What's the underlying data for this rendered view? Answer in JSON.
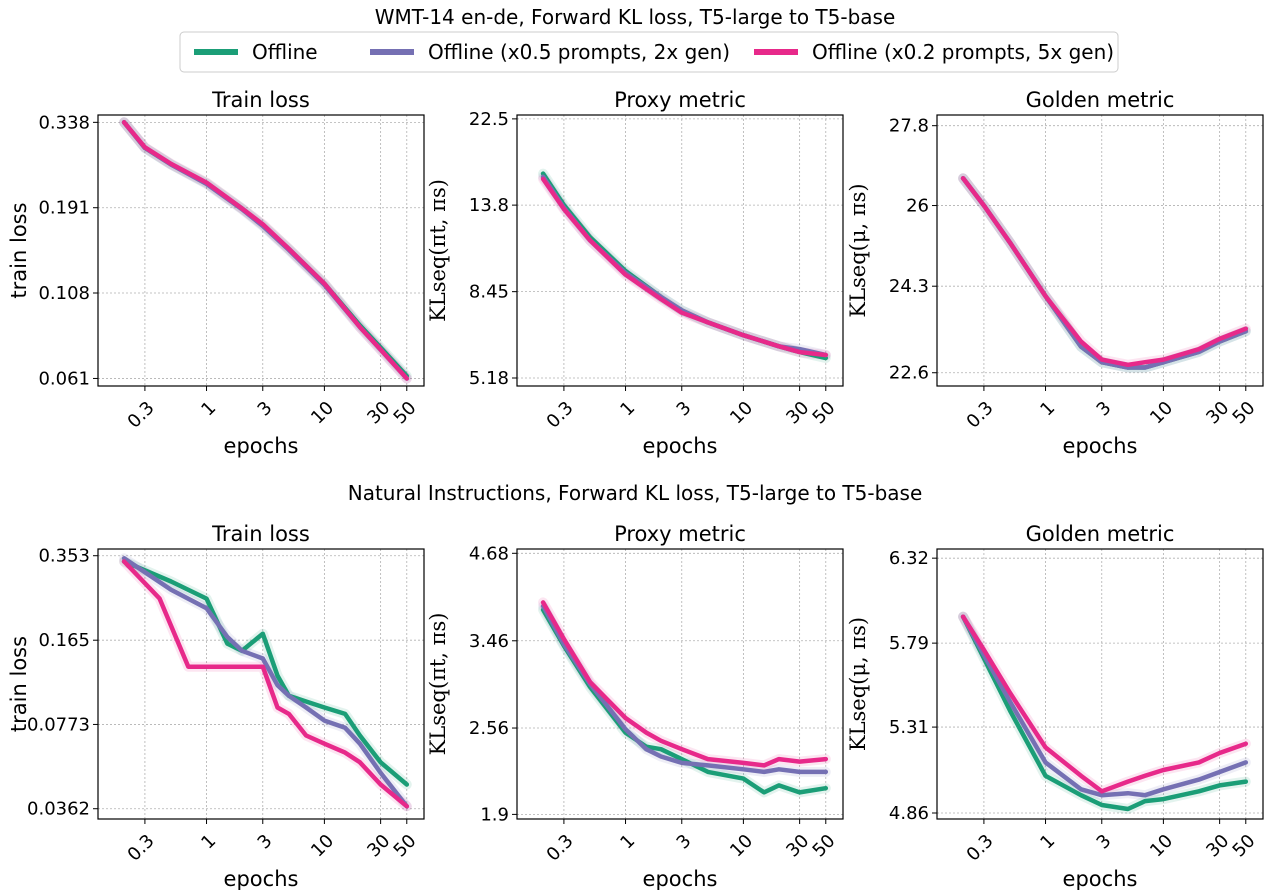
{
  "figure": {
    "row_titles": [
      "WMT-14 en-de, Forward KL loss, T5-large to T5-base",
      "Natural Instructions, Forward KL loss, T5-large to T5-base"
    ],
    "legend": [
      {
        "label": "Offline",
        "color": "#1b9e77"
      },
      {
        "label": "Offline (x0.5 prompts, 2x gen)",
        "color": "#7570b3"
      },
      {
        "label": "Offline (x0.2 prompts, 5x gen)",
        "color": "#e7298a"
      }
    ]
  },
  "chart_data": [
    {
      "type": "line",
      "title": "Train loss",
      "xlabel": "epochs",
      "ylabel": "train loss",
      "xscale": "log",
      "yscale": "log",
      "xticks": [
        "0.3",
        "1",
        "3",
        "10",
        "30",
        "50"
      ],
      "yticks": [
        "0.061",
        "0.108",
        "0.191",
        "0.338"
      ],
      "ylim": [
        0.058,
        0.355
      ],
      "grid": true,
      "series": [
        {
          "name": "Offline",
          "color": "#1b9e77",
          "x": [
            0.2,
            0.3,
            0.5,
            1,
            2,
            3,
            5,
            10,
            20,
            30,
            50
          ],
          "y": [
            0.338,
            0.285,
            0.255,
            0.225,
            0.19,
            0.17,
            0.145,
            0.115,
            0.087,
            0.075,
            0.062
          ]
        },
        {
          "name": "Offline (x0.5 prompts, 2x gen)",
          "color": "#7570b3",
          "x": [
            0.2,
            0.3,
            0.5,
            1,
            2,
            3,
            5,
            10,
            20,
            30,
            50
          ],
          "y": [
            0.338,
            0.285,
            0.255,
            0.224,
            0.189,
            0.169,
            0.144,
            0.114,
            0.086,
            0.074,
            0.061
          ]
        },
        {
          "name": "Offline (x0.2 prompts, 5x gen)",
          "color": "#e7298a",
          "x": [
            0.2,
            0.3,
            0.5,
            1,
            2,
            3,
            5,
            10,
            20,
            30,
            50
          ],
          "y": [
            0.338,
            0.286,
            0.256,
            0.226,
            0.19,
            0.171,
            0.145,
            0.115,
            0.086,
            0.074,
            0.061
          ]
        }
      ]
    },
    {
      "type": "line",
      "title": "Proxy metric",
      "xlabel": "epochs",
      "ylabel": "KLseq(πt, πs)",
      "xscale": "log",
      "yscale": "log",
      "xticks": [
        "0.3",
        "1",
        "3",
        "10",
        "30",
        "50"
      ],
      "yticks": [
        "5.18",
        "8.45",
        "13.8",
        "22.5"
      ],
      "ylim": [
        4.95,
        23.0
      ],
      "grid": true,
      "series": [
        {
          "name": "Offline",
          "color": "#1b9e77",
          "x": [
            0.2,
            0.3,
            0.5,
            1,
            2,
            3,
            5,
            10,
            20,
            30,
            50
          ],
          "y": [
            16.5,
            13.8,
            11.5,
            9.5,
            8.2,
            7.6,
            7.1,
            6.6,
            6.2,
            6.0,
            5.8
          ]
        },
        {
          "name": "Offline (x0.5 prompts, 2x gen)",
          "color": "#7570b3",
          "x": [
            0.2,
            0.3,
            0.5,
            1,
            2,
            3,
            5,
            10,
            20,
            30,
            50
          ],
          "y": [
            16.2,
            13.6,
            11.3,
            9.4,
            8.2,
            7.6,
            7.1,
            6.6,
            6.2,
            6.1,
            5.9
          ]
        },
        {
          "name": "Offline (x0.2 prompts, 5x gen)",
          "color": "#e7298a",
          "x": [
            0.2,
            0.3,
            0.5,
            1,
            2,
            3,
            5,
            10,
            20,
            30,
            50
          ],
          "y": [
            16.0,
            13.5,
            11.3,
            9.3,
            8.1,
            7.5,
            7.1,
            6.6,
            6.2,
            6.0,
            5.9
          ]
        }
      ]
    },
    {
      "type": "line",
      "title": "Golden metric",
      "xlabel": "epochs",
      "ylabel": "KLseq(μ, πs)",
      "xscale": "log",
      "yscale": "log",
      "xticks": [
        "0.3",
        "1",
        "3",
        "10",
        "30",
        "50"
      ],
      "yticks": [
        "22.6",
        "24.3",
        "26",
        "27.8"
      ],
      "ylim": [
        22.35,
        28.05
      ],
      "grid": true,
      "series": [
        {
          "name": "Offline",
          "color": "#1b9e77",
          "x": [
            0.2,
            0.3,
            0.5,
            1,
            2,
            3,
            5,
            7,
            10,
            20,
            30,
            50
          ],
          "y": [
            26.6,
            26.0,
            25.2,
            24.1,
            23.1,
            22.8,
            22.7,
            22.7,
            22.8,
            23.0,
            23.2,
            23.4
          ]
        },
        {
          "name": "Offline (x0.5 prompts, 2x gen)",
          "color": "#7570b3",
          "x": [
            0.2,
            0.3,
            0.5,
            1,
            2,
            3,
            5,
            7,
            10,
            20,
            30,
            50
          ],
          "y": [
            26.6,
            26.0,
            25.2,
            24.1,
            23.1,
            22.8,
            22.7,
            22.7,
            22.8,
            23.0,
            23.2,
            23.4
          ]
        },
        {
          "name": "Offline (x0.2 prompts, 5x gen)",
          "color": "#e7298a",
          "x": [
            0.2,
            0.3,
            0.5,
            1,
            2,
            3,
            5,
            7,
            10,
            20,
            30,
            50
          ],
          "y": [
            26.6,
            26.0,
            25.2,
            24.1,
            23.2,
            22.85,
            22.75,
            22.8,
            22.85,
            23.05,
            23.25,
            23.45
          ]
        }
      ]
    },
    {
      "type": "line",
      "title": "Train loss",
      "xlabel": "epochs",
      "ylabel": "train loss",
      "xscale": "log",
      "yscale": "log",
      "xticks": [
        "0.3",
        "1",
        "3",
        "10",
        "30",
        "50"
      ],
      "yticks": [
        "0.0362",
        "0.0773",
        "0.165",
        "0.353"
      ],
      "ylim": [
        0.033,
        0.375
      ],
      "grid": true,
      "series": [
        {
          "name": "Offline",
          "color": "#1b9e77",
          "x": [
            0.2,
            0.5,
            1,
            1.5,
            2,
            3,
            4,
            5,
            7,
            10,
            15,
            20,
            30,
            50
          ],
          "y": [
            0.335,
            0.28,
            0.24,
            0.16,
            0.15,
            0.175,
            0.12,
            0.1,
            0.095,
            0.09,
            0.085,
            0.07,
            0.055,
            0.045
          ]
        },
        {
          "name": "Offline (x0.5 prompts, 2x gen)",
          "color": "#7570b3",
          "x": [
            0.2,
            0.5,
            1,
            1.5,
            2,
            3,
            4,
            5,
            7,
            10,
            15,
            20,
            30,
            50
          ],
          "y": [
            0.345,
            0.26,
            0.22,
            0.17,
            0.15,
            0.14,
            0.11,
            0.1,
            0.09,
            0.08,
            0.075,
            0.065,
            0.05,
            0.037
          ]
        },
        {
          "name": "Offline (x0.2 prompts, 5x gen)",
          "color": "#e7298a",
          "x": [
            0.2,
            0.4,
            0.7,
            1,
            2,
            3,
            4,
            5,
            7,
            10,
            15,
            20,
            30,
            50
          ],
          "y": [
            0.335,
            0.24,
            0.13,
            0.13,
            0.13,
            0.13,
            0.09,
            0.085,
            0.07,
            0.065,
            0.06,
            0.055,
            0.045,
            0.037
          ]
        }
      ]
    },
    {
      "type": "line",
      "title": "Proxy metric",
      "xlabel": "epochs",
      "ylabel": "KLseq(πt, πs)",
      "xscale": "log",
      "yscale": "log",
      "xticks": [
        "0.3",
        "1",
        "3",
        "10",
        "30",
        "50"
      ],
      "yticks": [
        "1.9",
        "2.56",
        "3.46",
        "4.68"
      ],
      "ylim": [
        1.87,
        4.75
      ],
      "grid": true,
      "series": [
        {
          "name": "Offline",
          "color": "#1b9e77",
          "x": [
            0.2,
            0.3,
            0.5,
            1,
            1.5,
            2,
            3,
            5,
            10,
            15,
            20,
            30,
            50
          ],
          "y": [
            3.85,
            3.4,
            2.95,
            2.52,
            2.4,
            2.38,
            2.3,
            2.2,
            2.15,
            2.05,
            2.1,
            2.05,
            2.08
          ]
        },
        {
          "name": "Offline (x0.5 prompts, 2x gen)",
          "color": "#7570b3",
          "x": [
            0.2,
            0.3,
            0.5,
            1,
            1.5,
            2,
            3,
            5,
            10,
            15,
            20,
            30,
            50
          ],
          "y": [
            3.9,
            3.42,
            2.98,
            2.55,
            2.38,
            2.32,
            2.27,
            2.25,
            2.22,
            2.2,
            2.22,
            2.2,
            2.2
          ]
        },
        {
          "name": "Offline (x0.2 prompts, 5x gen)",
          "color": "#e7298a",
          "x": [
            0.2,
            0.3,
            0.5,
            1,
            1.5,
            2,
            3,
            5,
            10,
            15,
            20,
            30,
            50
          ],
          "y": [
            3.95,
            3.48,
            3.0,
            2.65,
            2.52,
            2.45,
            2.38,
            2.3,
            2.27,
            2.25,
            2.3,
            2.28,
            2.3
          ]
        }
      ]
    },
    {
      "type": "line",
      "title": "Golden metric",
      "xlabel": "epochs",
      "ylabel": "KLseq(μ, πs)",
      "xscale": "log",
      "yscale": "log",
      "xticks": [
        "0.3",
        "1",
        "3",
        "10",
        "30",
        "50"
      ],
      "yticks": [
        "4.86",
        "5.31",
        "5.79",
        "6.32"
      ],
      "ylim": [
        4.83,
        6.38
      ],
      "grid": true,
      "series": [
        {
          "name": "Offline",
          "color": "#1b9e77",
          "x": [
            0.2,
            0.3,
            0.5,
            1,
            2,
            3,
            5,
            7,
            10,
            20,
            30,
            50
          ],
          "y": [
            5.95,
            5.7,
            5.4,
            5.05,
            4.95,
            4.9,
            4.88,
            4.92,
            4.93,
            4.97,
            5.0,
            5.02
          ]
        },
        {
          "name": "Offline (x0.5 prompts, 2x gen)",
          "color": "#7570b3",
          "x": [
            0.2,
            0.3,
            0.5,
            1,
            2,
            3,
            5,
            7,
            10,
            20,
            30,
            50
          ],
          "y": [
            5.95,
            5.72,
            5.45,
            5.12,
            4.98,
            4.95,
            4.96,
            4.95,
            4.98,
            5.03,
            5.07,
            5.12
          ]
        },
        {
          "name": "Offline (x0.2 prompts, 5x gen)",
          "color": "#e7298a",
          "x": [
            0.2,
            0.3,
            0.5,
            1,
            2,
            3,
            5,
            7,
            10,
            20,
            30,
            50
          ],
          "y": [
            5.95,
            5.75,
            5.5,
            5.2,
            5.05,
            4.97,
            5.02,
            5.05,
            5.08,
            5.12,
            5.17,
            5.22
          ]
        }
      ]
    }
  ]
}
